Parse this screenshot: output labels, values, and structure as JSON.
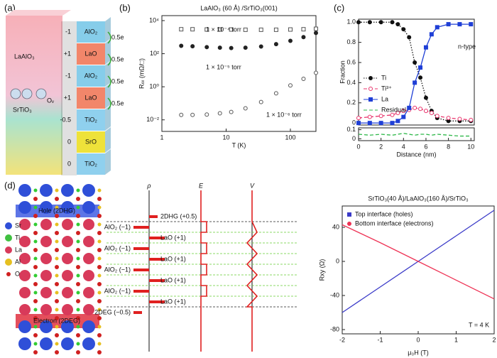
{
  "panel_labels": [
    "(a)",
    "(b)",
    "(c)",
    "(d)"
  ],
  "diagram_a": {
    "upper": "LaAlO₃",
    "lower": "SrTiO₃",
    "vacancy": "Oᵥ",
    "layers": [
      {
        "label": "AlO₂",
        "charge": "-1"
      },
      {
        "label": "LaO",
        "charge": "+1"
      },
      {
        "label": "AlO₂",
        "charge": "-1"
      },
      {
        "label": "LaO",
        "charge": "+1"
      },
      {
        "label": "TiO₂",
        "charge": "-0.5"
      },
      {
        "label": "SrO",
        "charge": "0"
      },
      {
        "label": "TiO₂",
        "charge": "0"
      }
    ],
    "transfer": [
      "0.5e",
      "0.5e",
      "0.5e",
      "0.5e"
    ]
  },
  "diagram_d": {
    "atoms": [
      "Sr",
      "Ti",
      "La",
      "Al",
      "O"
    ],
    "hole": "Hole (2DHG)",
    "electron": "Electron (2DEG)",
    "layers": [
      "2DHG (+0.5)",
      "AlO₂ (−1)",
      "LaO (+1)",
      "AlO₂ (−1)",
      "LaO (+1)",
      "AlO₂ (−1)",
      "LaO (+1)",
      "AlO₂ (−1)",
      "LaO (+1)",
      "2DEG (−0.5)"
    ],
    "axes": [
      "ρ",
      "E",
      "V"
    ]
  },
  "chart_data": [
    {
      "type": "line",
      "title": "LaAlO₃ (60 Å) /SrTiO₃(001)",
      "x_label": "T (K)",
      "y_label": "Rₓₓ (mΩ/□)",
      "xlog": true,
      "ylog": true,
      "xlim": [
        1,
        250
      ],
      "ylim": [
        0.002,
        20000
      ],
      "xticks": [
        1,
        10,
        100
      ],
      "yticks": [
        {
          "value": 0.01,
          "label": "10⁻²"
        },
        {
          "value": 1,
          "label": "10⁰"
        },
        {
          "value": 100,
          "label": "10²"
        },
        {
          "value": 10000,
          "label": "10⁴"
        }
      ],
      "annotations": [
        "1 × 10⁻⁴ torr",
        "1 × 10⁻⁵ torr",
        "1 × 10⁻⁶ torr"
      ],
      "x": [
        2,
        3,
        5,
        8,
        12,
        20,
        35,
        60,
        100,
        160,
        250
      ],
      "series": [
        {
          "color": "#555555",
          "marker": "open-square",
          "line": "none",
          "values": [
            3000,
            3000,
            2900,
            2900,
            2900,
            2800,
            2800,
            2800,
            2900,
            3000,
            3200
          ]
        },
        {
          "color": "#222222",
          "marker": "circle",
          "line": "none",
          "values": [
            300,
            280,
            250,
            230,
            220,
            230,
            270,
            380,
            600,
            1000,
            1800
          ]
        },
        {
          "color": "#555555",
          "marker": "open-circle",
          "line": "none",
          "values": [
            0.02,
            0.02,
            0.021,
            0.025,
            0.03,
            0.05,
            0.12,
            0.4,
            1.2,
            3,
            7
          ]
        }
      ]
    },
    {
      "type": "line",
      "y_label": "Fraction",
      "annotations": [
        "n-type"
      ],
      "xlim": [
        0,
        10.3
      ],
      "ylim": [
        -0.02,
        1.03
      ],
      "yticks": [
        0,
        0.2,
        0.4,
        0.6,
        0.8,
        {
          "value": 1,
          "label": "1.0"
        }
      ],
      "x": [
        0,
        1,
        2,
        3,
        3.5,
        4,
        4.5,
        5,
        5.5,
        6,
        6.5,
        7,
        8,
        9,
        10
      ],
      "series": [
        {
          "name": "Ti",
          "color": "#111111",
          "marker": "circle",
          "line": "dotted",
          "values": [
            1,
            1,
            1,
            1,
            0.98,
            0.93,
            0.85,
            0.6,
            0.45,
            0.25,
            0.12,
            0.05,
            0.02,
            0.02,
            0.02
          ]
        },
        {
          "name": "Ti³⁺",
          "color": "#e8336b",
          "marker": "open-circle",
          "line": "dashed",
          "values": [
            0.05,
            0.06,
            0.07,
            0.08,
            0.1,
            0.12,
            0.13,
            0.15,
            0.14,
            0.12,
            0.1,
            0.07,
            0.05,
            0.04,
            0.03
          ]
        },
        {
          "name": "La",
          "color": "#1f3fd6",
          "marker": "square",
          "line": "solid",
          "values": [
            0,
            0,
            0,
            0,
            0.02,
            0.06,
            0.15,
            0.4,
            0.55,
            0.75,
            0.88,
            0.95,
            0.98,
            0.98,
            0.98
          ]
        }
      ]
    },
    {
      "type": "line",
      "x_label": "Distance (nm)",
      "xlim": [
        0,
        10.3
      ],
      "ylim": [
        -0.02,
        0.12
      ],
      "yticks": [
        0,
        0.1
      ],
      "xticks": [
        0,
        2,
        4,
        6,
        8,
        10
      ],
      "x": [
        0,
        1,
        2,
        3,
        3.5,
        4,
        4.5,
        5,
        5.5,
        6,
        6.5,
        7,
        8,
        9,
        10
      ],
      "series": [
        {
          "name": "Residual",
          "color": "#2fb84a",
          "marker": "none",
          "line": "dashed",
          "values": [
            0.05,
            0.04,
            0.05,
            0.04,
            0.05,
            0.06,
            0.05,
            0.04,
            0.05,
            0.05,
            0.04,
            0.05,
            0.04,
            0.03,
            0.03
          ]
        }
      ]
    },
    {
      "type": "line",
      "title": "SrTiO₃(40 Å)/LaAlO₃(160 Å)/SrTiO₃",
      "x_label": "μ₀H (T)",
      "y_label": "Rxy (Ω)",
      "annotations": [
        "T = 4 K"
      ],
      "xlim": [
        -2,
        2
      ],
      "ylim": [
        -85,
        65
      ],
      "xticks": [
        -2,
        -1,
        0,
        1,
        2
      ],
      "yticks": [
        -80,
        -40,
        0,
        40
      ],
      "x": [
        -2,
        -1,
        0,
        1,
        2
      ],
      "series": [
        {
          "name": "Top interface (holes)",
          "color": "#3a3ac8",
          "marker": "none",
          "legend_marker": "square",
          "line": "solid",
          "values": [
            -60,
            -30,
            0,
            30,
            60
          ]
        },
        {
          "name": "Bottom interface (electrons)",
          "color": "#ee3355",
          "marker": "none",
          "legend_marker": "circle",
          "line": "solid",
          "values": [
            43,
            22,
            0,
            -22,
            -44
          ]
        }
      ]
    }
  ]
}
